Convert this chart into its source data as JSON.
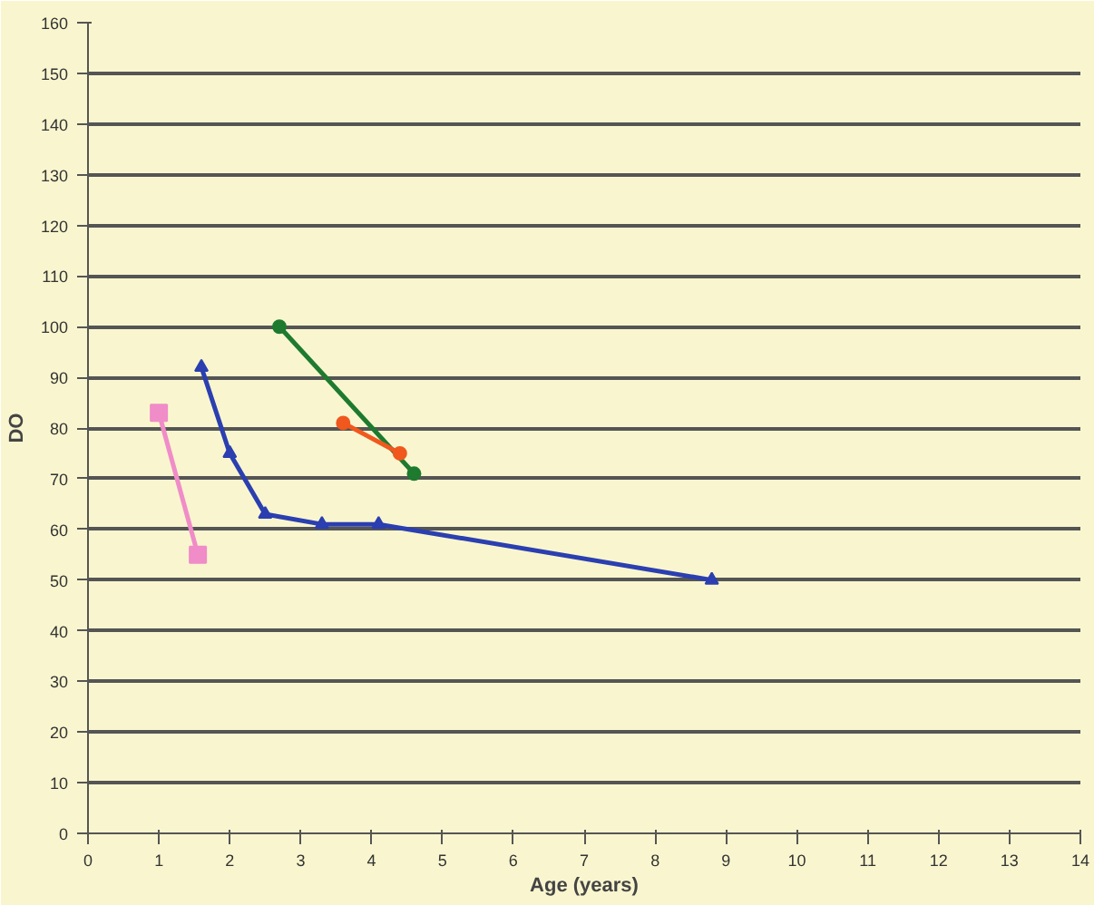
{
  "chart_data": {
    "type": "line",
    "xlabel": "Age (years)",
    "ylabel": "DO",
    "xlim": [
      0,
      14
    ],
    "ylim": [
      0,
      160
    ],
    "xticks": [
      0,
      1,
      2,
      3,
      4,
      5,
      6,
      7,
      8,
      9,
      10,
      11,
      12,
      13,
      14
    ],
    "yticks": [
      0,
      10,
      20,
      30,
      40,
      50,
      60,
      70,
      80,
      90,
      100,
      110,
      120,
      130,
      140,
      150,
      160
    ],
    "grid": "y",
    "series": [
      {
        "color": "#2b3fb0",
        "marker": "triangle",
        "x": [
          1.6,
          2.0,
          2.5,
          3.3,
          4.1,
          8.8
        ],
        "values": [
          92,
          75,
          63,
          61,
          61,
          50
        ]
      },
      {
        "color": "#f08cc8",
        "marker": "square",
        "x": [
          1.0,
          1.55
        ],
        "values": [
          83,
          55
        ]
      },
      {
        "color": "#1e7a2e",
        "marker": "circle",
        "x": [
          2.7,
          4.6
        ],
        "values": [
          100,
          71
        ]
      },
      {
        "color": "#f0581e",
        "marker": "circle",
        "x": [
          3.6,
          4.4
        ],
        "values": [
          81,
          75
        ]
      }
    ]
  }
}
